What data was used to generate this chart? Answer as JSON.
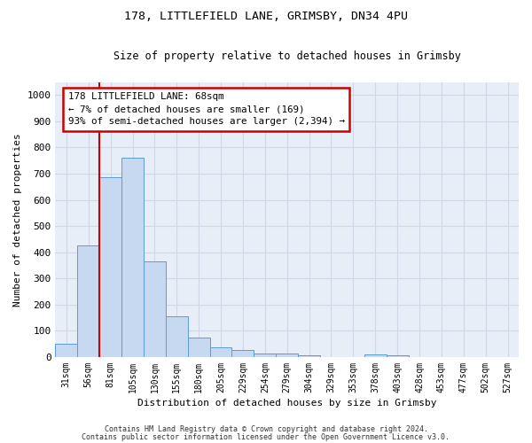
{
  "title_line1": "178, LITTLEFIELD LANE, GRIMSBY, DN34 4PU",
  "title_line2": "Size of property relative to detached houses in Grimsby",
  "xlabel": "Distribution of detached houses by size in Grimsby",
  "ylabel": "Number of detached properties",
  "footer_line1": "Contains HM Land Registry data © Crown copyright and database right 2024.",
  "footer_line2": "Contains public sector information licensed under the Open Government Licence v3.0.",
  "bin_labels": [
    "31sqm",
    "56sqm",
    "81sqm",
    "105sqm",
    "130sqm",
    "155sqm",
    "180sqm",
    "205sqm",
    "229sqm",
    "254sqm",
    "279sqm",
    "304sqm",
    "329sqm",
    "353sqm",
    "378sqm",
    "403sqm",
    "428sqm",
    "453sqm",
    "477sqm",
    "502sqm",
    "527sqm"
  ],
  "bar_heights": [
    52,
    425,
    685,
    760,
    365,
    155,
    75,
    38,
    27,
    15,
    15,
    8,
    0,
    0,
    9,
    8,
    0,
    0,
    0,
    0,
    0
  ],
  "bar_color": "#c6d9f0",
  "bar_edge_color": "#5b9bd5",
  "grid_color": "#d0d8e8",
  "vline_x": 1.5,
  "vline_color": "#cc0000",
  "annotation_text": "178 LITTLEFIELD LANE: 68sqm\n← 7% of detached houses are smaller (169)\n93% of semi-detached houses are larger (2,394) →",
  "annotation_box_color": "#cc0000",
  "ylim": [
    0,
    1050
  ],
  "yticks": [
    0,
    100,
    200,
    300,
    400,
    500,
    600,
    700,
    800,
    900,
    1000
  ],
  "background_color": "#e8eef8"
}
